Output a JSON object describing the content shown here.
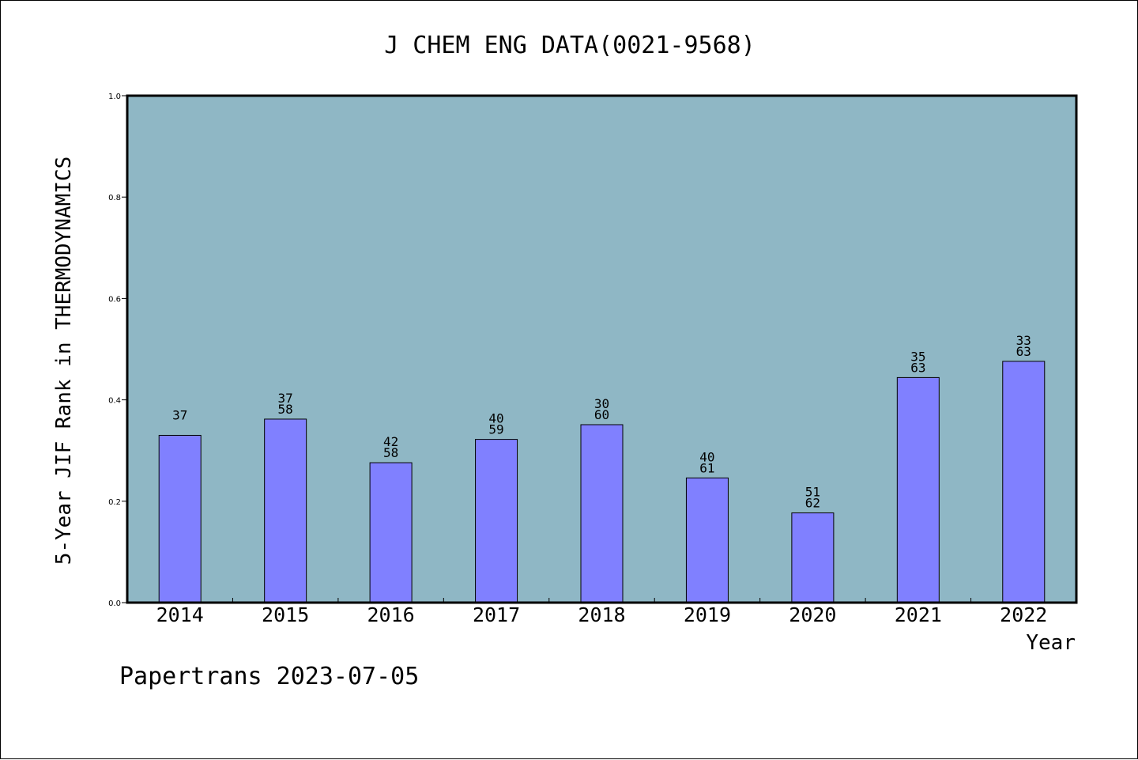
{
  "chart_data": {
    "type": "bar",
    "title": "J CHEM ENG DATA(0021-9568)",
    "xlabel": "Year",
    "ylabel": "5-Year JIF Rank in THERMODYNAMICS",
    "ylim": [
      0,
      1.0
    ],
    "yticks": [
      "0.0",
      "0.2",
      "0.4",
      "0.6",
      "0.8",
      "1.0"
    ],
    "grid": false,
    "categories": [
      "2014",
      "2015",
      "2016",
      "2017",
      "2018",
      "2019",
      "2020",
      "2021",
      "2022"
    ],
    "values": [
      0.33,
      0.362,
      0.276,
      0.322,
      0.351,
      0.246,
      0.177,
      0.444,
      0.476
    ],
    "rank_labels": [
      {
        "rank": "37",
        "total": ""
      },
      {
        "rank": "37",
        "total": "58"
      },
      {
        "rank": "42",
        "total": "58"
      },
      {
        "rank": "40",
        "total": "59"
      },
      {
        "rank": "30",
        "total": "60"
      },
      {
        "rank": "40",
        "total": "61"
      },
      {
        "rank": "51",
        "total": "62"
      },
      {
        "rank": "35",
        "total": "63"
      },
      {
        "rank": "33",
        "total": "63"
      }
    ],
    "colors": {
      "plot_background": "#8fb7c5",
      "bar_fill": "#8080ff",
      "bar_stroke": "#000000"
    }
  },
  "footer": "Papertrans 2023-07-05"
}
